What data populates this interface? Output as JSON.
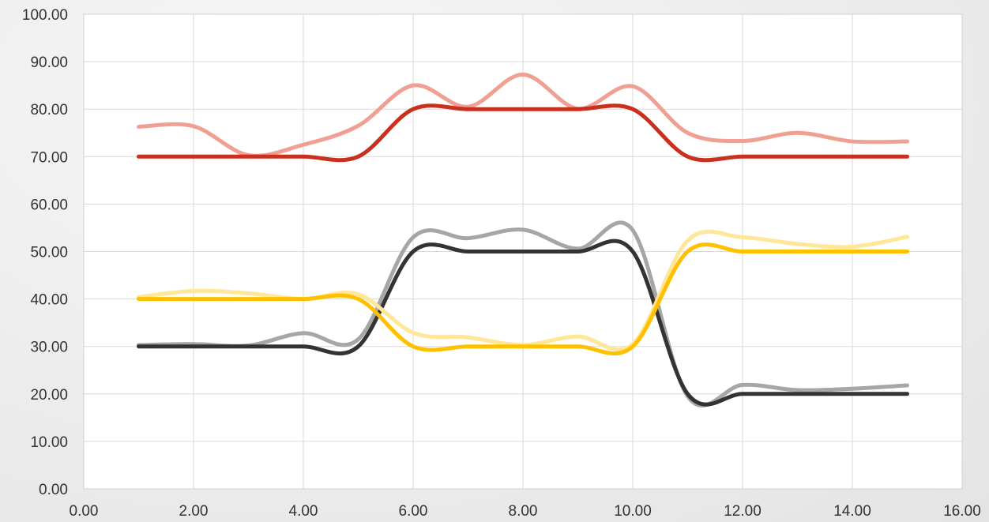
{
  "chart_data": {
    "type": "line",
    "smooth": true,
    "title": "",
    "xlabel": "",
    "ylabel": "",
    "xlim": [
      0,
      16
    ],
    "ylim": [
      0,
      100
    ],
    "x_ticks": [
      "0.00",
      "2.00",
      "4.00",
      "6.00",
      "8.00",
      "10.00",
      "12.00",
      "14.00",
      "16.00"
    ],
    "y_ticks": [
      "0.00",
      "10.00",
      "20.00",
      "30.00",
      "40.00",
      "50.00",
      "60.00",
      "70.00",
      "80.00",
      "90.00",
      "100.00"
    ],
    "grid": true,
    "legend": "none",
    "series": [
      {
        "color": "#f0a093",
        "x": [
          1,
          2,
          3,
          4,
          5,
          6,
          7,
          8,
          9,
          10,
          11,
          12,
          13,
          14,
          15
        ],
        "y": [
          76.3,
          76.4,
          70.3,
          72.5,
          76.5,
          85,
          80.5,
          87.3,
          80.1,
          84.8,
          75,
          73.3,
          75,
          73.2,
          73.2
        ]
      },
      {
        "color": "#c9301e",
        "x": [
          1,
          2,
          3,
          4,
          5,
          6,
          7,
          8,
          9,
          10,
          11,
          12,
          13,
          14,
          15
        ],
        "y": [
          70,
          70,
          70,
          70,
          70,
          80,
          80,
          80,
          80,
          80,
          70,
          70,
          70,
          70,
          70
        ]
      },
      {
        "color": "#a6a6a6",
        "x": [
          1,
          2,
          3,
          4,
          5,
          6,
          7,
          8,
          9,
          10,
          11,
          12,
          13,
          14,
          15
        ],
        "y": [
          30.3,
          30.5,
          30.2,
          32.8,
          31.5,
          53,
          52.8,
          54.6,
          50.6,
          54.5,
          19.5,
          21.9,
          20.8,
          21.1,
          21.8
        ]
      },
      {
        "color": "#333333",
        "x": [
          1,
          2,
          3,
          4,
          5,
          6,
          7,
          8,
          9,
          10,
          11,
          12,
          13,
          14,
          15
        ],
        "y": [
          30,
          30,
          30,
          30,
          30,
          50,
          50,
          50,
          50,
          50,
          20,
          20,
          20,
          20,
          20
        ]
      },
      {
        "color": "#ffe699",
        "x": [
          1,
          2,
          3,
          4,
          5,
          6,
          7,
          8,
          9,
          10,
          11,
          12,
          13,
          14,
          15
        ],
        "y": [
          40.4,
          41.7,
          41.2,
          40,
          41,
          32.9,
          31.9,
          30.3,
          32.1,
          30.5,
          52.3,
          53,
          51.6,
          51,
          53.1
        ]
      },
      {
        "color": "#ffc000",
        "x": [
          1,
          2,
          3,
          4,
          5,
          6,
          7,
          8,
          9,
          10,
          11,
          12,
          13,
          14,
          15
        ],
        "y": [
          40,
          40,
          40,
          40,
          40,
          30,
          30,
          30,
          30,
          30,
          50,
          50,
          50,
          50,
          50
        ]
      }
    ]
  }
}
